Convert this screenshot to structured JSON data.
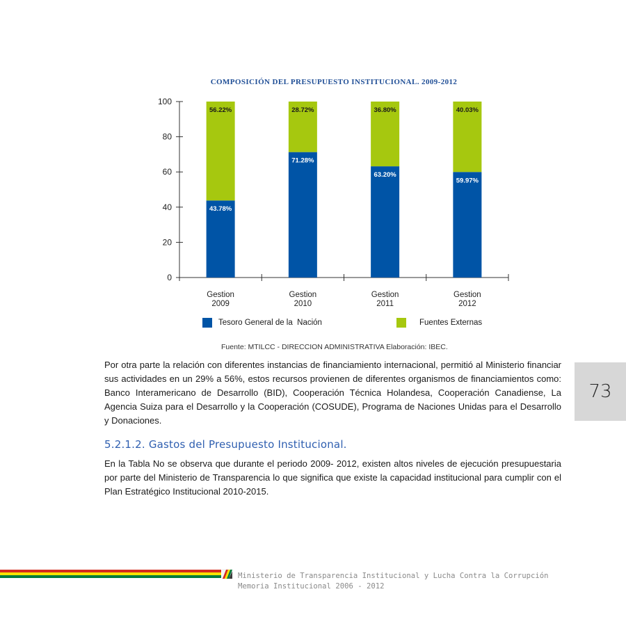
{
  "chart": {
    "title": "COMPOSICIÓN DEL PRESUPUESTO INSTITUCIONAL. 2009-2012",
    "source": "Fuente: MTILCC - DIRECCION ADMINISTRATIVA Elaboración: IBEC."
  },
  "chart_data": {
    "type": "bar",
    "stacked": true,
    "title": "COMPOSICIÓN DEL PRESUPUESTO INSTITUCIONAL. 2009-2012",
    "categories": [
      [
        "Gestion",
        "2009"
      ],
      [
        "Gestion",
        "2010"
      ],
      [
        "Gestion",
        "2011"
      ],
      [
        "Gestion",
        "2012"
      ]
    ],
    "series": [
      {
        "name": "Tesoro General de la  Nación",
        "color": "#0054a6",
        "values": [
          43.78,
          71.28,
          63.2,
          59.97
        ],
        "labels": [
          "43.78%",
          "71.28%",
          "63.20%",
          "59.97%"
        ]
      },
      {
        "name": "Fuentes Externas",
        "color": "#a6c80f",
        "values": [
          56.22,
          28.72,
          36.8,
          40.03
        ],
        "labels": [
          "56.22%",
          "28.72%",
          "36.80%",
          "40.03%"
        ]
      }
    ],
    "ylim": [
      0,
      100
    ],
    "yticks": [
      "0",
      "20",
      "40",
      "60",
      "80",
      "100"
    ],
    "grid": false,
    "legend": "bottom"
  },
  "body": {
    "paragraph1": "Por otra parte la relación con diferentes instancias de financiamiento internacional, permitió al Ministerio financiar sus actividades en un 29% a 56%, estos recursos provienen de diferentes organismos de financiamientos como: Banco Interamericano de Desarrollo (BID), Cooperación Técnica Holandesa, Cooperación Canadiense, La Agencia Suiza para el Desarrollo y la Cooperación (COSUDE), Programa de Naciones Unidas para el Desarrollo y Donaciones.",
    "section_heading": "5.2.1.2. Gastos del Presupuesto Institucional.",
    "paragraph2": "En la Tabla No se observa que durante el periodo 2009- 2012, existen altos niveles de ejecución presupuestaria por parte del Ministerio de Transparencia lo que significa que existe la capacidad institucional para cumplir con el Plan Estratégico Institucional 2010-2015."
  },
  "page_number": "73",
  "footer": {
    "line1": "Ministerio de Transparencia Institucional y Lucha Contra la Corrupción",
    "line2": "Memoria Institucional 2006 - 2012",
    "colors": {
      "red": "#d52b1e",
      "yellow": "#f9e300",
      "green": "#007a3d"
    }
  }
}
